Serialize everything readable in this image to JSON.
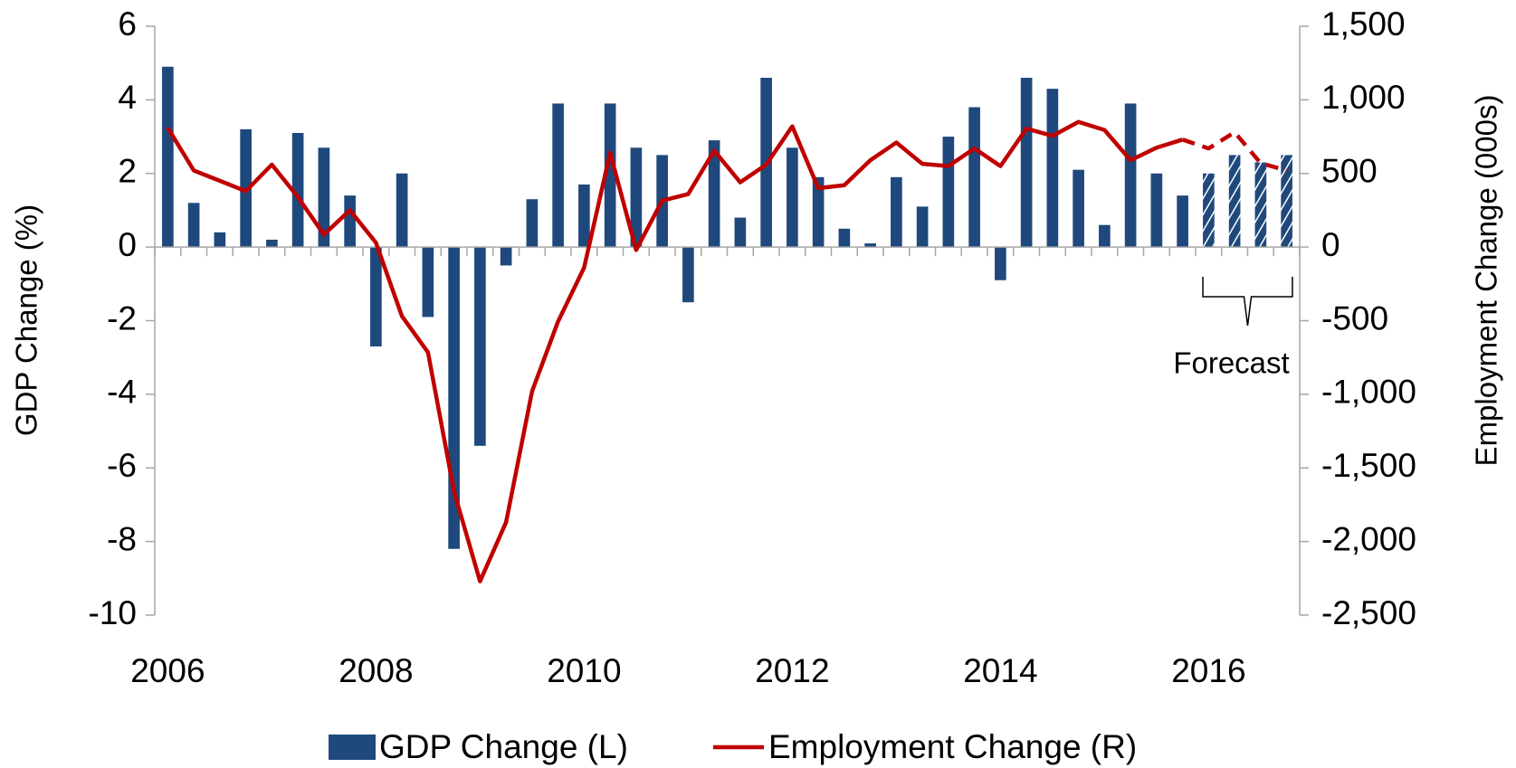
{
  "chart_data": {
    "type": "bar-line",
    "categories": [
      "2006",
      null,
      null,
      null,
      null,
      null,
      null,
      null,
      "2008",
      null,
      null,
      null,
      null,
      null,
      null,
      null,
      "2010",
      null,
      null,
      null,
      null,
      null,
      null,
      null,
      "2012",
      null,
      null,
      null,
      null,
      null,
      null,
      null,
      "2014",
      null,
      null,
      null,
      null,
      null,
      null,
      null,
      "2016",
      null,
      null,
      null
    ],
    "series": [
      {
        "name": "GDP Change (L)",
        "type": "bar",
        "axis": "y",
        "color": "#1f497d",
        "values": [
          4.9,
          1.2,
          0.4,
          3.2,
          0.2,
          3.1,
          2.7,
          1.4,
          -2.7,
          2.0,
          -1.9,
          -8.2,
          -5.4,
          -0.5,
          1.3,
          3.9,
          1.7,
          3.9,
          2.7,
          2.5,
          -1.5,
          2.9,
          0.8,
          4.6,
          2.7,
          1.9,
          0.5,
          0.1,
          1.9,
          1.1,
          3.0,
          3.8,
          -0.9,
          4.6,
          4.3,
          2.1,
          0.6,
          3.9,
          2.0,
          1.4,
          2.0,
          2.5,
          2.3,
          2.5
        ]
      },
      {
        "name": "Employment Change (R)",
        "type": "line",
        "axis": "y2",
        "color": "#c00000",
        "values": [
          810,
          520,
          450,
          380,
          560,
          340,
          85,
          250,
          30,
          -470,
          -715,
          -1660,
          -2270,
          -1870,
          -980,
          -505,
          -140,
          640,
          -20,
          315,
          360,
          655,
          440,
          560,
          820,
          400,
          420,
          590,
          710,
          565,
          550,
          670,
          550,
          805,
          755,
          850,
          795,
          590,
          675,
          730,
          670,
          780,
          570,
          520
        ]
      }
    ],
    "y_label": "GDP Change (%)",
    "y2_label": "Employment Change (000s)",
    "ylim": [
      -10,
      6
    ],
    "yticks": [
      -10,
      -8,
      -6,
      -4,
      -2,
      0,
      2,
      4,
      6
    ],
    "y2lim": [
      -2500,
      1500
    ],
    "y2ticks": [
      {
        "value": -2500,
        "label": "-2,500"
      },
      {
        "value": -2000,
        "label": "-2,000"
      },
      {
        "value": -1500,
        "label": "-1,500"
      },
      {
        "value": -1000,
        "label": "-1,000"
      },
      -500,
      0,
      500,
      {
        "value": 1000,
        "label": "1,000"
      },
      {
        "value": 1500,
        "label": "1,500"
      }
    ],
    "annotations": [
      {
        "text": "Forecast",
        "start": 40,
        "end": 43
      }
    ],
    "legend": "bottom",
    "grid": false
  }
}
